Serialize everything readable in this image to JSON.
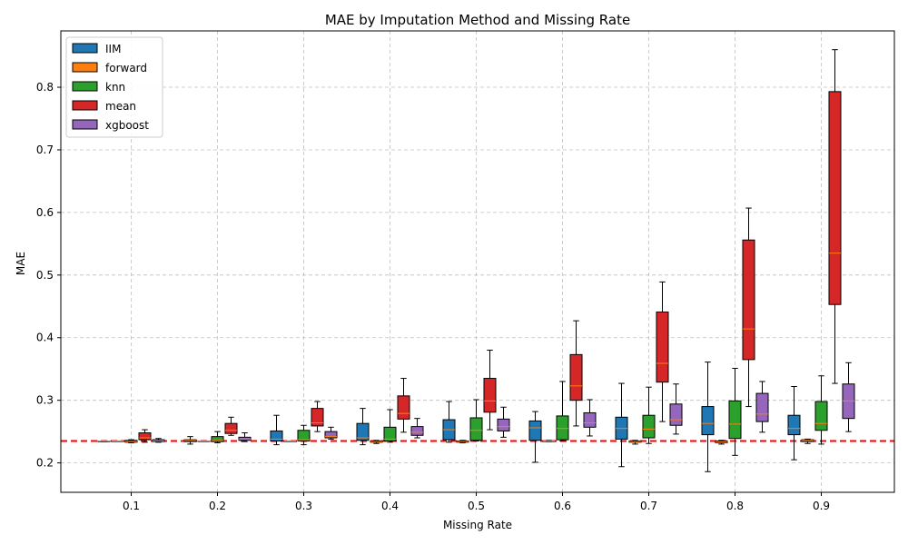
{
  "chart_data": {
    "type": "box",
    "title": "MAE by Imputation Method and Missing Rate",
    "xlabel": "Missing Rate",
    "ylabel": "MAE",
    "categories": [
      "0.1",
      "0.2",
      "0.3",
      "0.4",
      "0.5",
      "0.6",
      "0.7",
      "0.8",
      "0.9"
    ],
    "ylim": [
      0.153,
      0.89
    ],
    "yticks": [
      "0.2",
      "0.3",
      "0.4",
      "0.5",
      "0.6",
      "0.7",
      "0.8"
    ],
    "grid": true,
    "legend_position": "top-left",
    "reference_line": {
      "value": 0.235,
      "color": "#ff0000",
      "style": "dashed"
    },
    "median_color": "#ff7f0e",
    "series": [
      {
        "name": "IIM",
        "color": "#1f77b4",
        "boxes": [
          {
            "whislo": 0.234,
            "q1": 0.234,
            "med": 0.235,
            "q3": 0.235,
            "whishi": 0.235
          },
          {
            "whislo": 0.23,
            "q1": 0.234,
            "med": 0.236,
            "q3": 0.237,
            "whishi": 0.242
          },
          {
            "whislo": 0.229,
            "q1": 0.235,
            "med": 0.238,
            "q3": 0.251,
            "whishi": 0.276
          },
          {
            "whislo": 0.229,
            "q1": 0.236,
            "med": 0.24,
            "q3": 0.263,
            "whishi": 0.287
          },
          {
            "whislo": 0.233,
            "q1": 0.237,
            "med": 0.253,
            "q3": 0.269,
            "whishi": 0.298
          },
          {
            "whislo": 0.201,
            "q1": 0.236,
            "med": 0.256,
            "q3": 0.267,
            "whishi": 0.282
          },
          {
            "whislo": 0.194,
            "q1": 0.238,
            "med": 0.255,
            "q3": 0.273,
            "whishi": 0.327
          },
          {
            "whislo": 0.186,
            "q1": 0.245,
            "med": 0.263,
            "q3": 0.29,
            "whishi": 0.361
          },
          {
            "whislo": 0.205,
            "q1": 0.245,
            "med": 0.255,
            "q3": 0.276,
            "whishi": 0.322
          }
        ]
      },
      {
        "name": "forward",
        "color": "#ff7f0e",
        "boxes": [
          {
            "whislo": 0.235,
            "q1": 0.235,
            "med": 0.235,
            "q3": 0.235,
            "whishi": 0.235
          },
          {
            "whislo": 0.235,
            "q1": 0.235,
            "med": 0.235,
            "q3": 0.235,
            "whishi": 0.235
          },
          {
            "whislo": 0.235,
            "q1": 0.235,
            "med": 0.235,
            "q3": 0.235,
            "whishi": 0.235
          },
          {
            "whislo": 0.231,
            "q1": 0.233,
            "med": 0.234,
            "q3": 0.235,
            "whishi": 0.236
          },
          {
            "whislo": 0.232,
            "q1": 0.233,
            "med": 0.234,
            "q3": 0.235,
            "whishi": 0.236
          },
          {
            "whislo": 0.234,
            "q1": 0.235,
            "med": 0.235,
            "q3": 0.235,
            "whishi": 0.236
          },
          {
            "whislo": 0.23,
            "q1": 0.233,
            "med": 0.234,
            "q3": 0.235,
            "whishi": 0.236
          },
          {
            "whislo": 0.23,
            "q1": 0.232,
            "med": 0.233,
            "q3": 0.235,
            "whishi": 0.236
          },
          {
            "whislo": 0.231,
            "q1": 0.234,
            "med": 0.236,
            "q3": 0.237,
            "whishi": 0.238
          }
        ]
      },
      {
        "name": "knn",
        "color": "#2ca02c",
        "boxes": [
          {
            "whislo": 0.232,
            "q1": 0.233,
            "med": 0.234,
            "q3": 0.236,
            "whishi": 0.237
          },
          {
            "whislo": 0.232,
            "q1": 0.234,
            "med": 0.236,
            "q3": 0.242,
            "whishi": 0.25
          },
          {
            "whislo": 0.229,
            "q1": 0.235,
            "med": 0.237,
            "q3": 0.252,
            "whishi": 0.26
          },
          {
            "whislo": 0.233,
            "q1": 0.235,
            "med": 0.238,
            "q3": 0.257,
            "whishi": 0.285
          },
          {
            "whislo": 0.235,
            "q1": 0.236,
            "med": 0.252,
            "q3": 0.272,
            "whishi": 0.301
          },
          {
            "whislo": 0.235,
            "q1": 0.237,
            "med": 0.255,
            "q3": 0.275,
            "whishi": 0.33
          },
          {
            "whislo": 0.231,
            "q1": 0.24,
            "med": 0.254,
            "q3": 0.276,
            "whishi": 0.321
          },
          {
            "whislo": 0.212,
            "q1": 0.239,
            "med": 0.262,
            "q3": 0.299,
            "whishi": 0.351
          },
          {
            "whislo": 0.23,
            "q1": 0.252,
            "med": 0.263,
            "q3": 0.298,
            "whishi": 0.339
          }
        ]
      },
      {
        "name": "mean",
        "color": "#d62728",
        "boxes": [
          {
            "whislo": 0.233,
            "q1": 0.237,
            "med": 0.24,
            "q3": 0.248,
            "whishi": 0.253
          },
          {
            "whislo": 0.244,
            "q1": 0.247,
            "med": 0.252,
            "q3": 0.263,
            "whishi": 0.273
          },
          {
            "whislo": 0.25,
            "q1": 0.259,
            "med": 0.264,
            "q3": 0.287,
            "whishi": 0.298
          },
          {
            "whislo": 0.249,
            "q1": 0.27,
            "med": 0.279,
            "q3": 0.307,
            "whishi": 0.335
          },
          {
            "whislo": 0.253,
            "q1": 0.281,
            "med": 0.299,
            "q3": 0.335,
            "whishi": 0.38
          },
          {
            "whislo": 0.259,
            "q1": 0.3,
            "med": 0.323,
            "q3": 0.373,
            "whishi": 0.427
          },
          {
            "whislo": 0.266,
            "q1": 0.329,
            "med": 0.359,
            "q3": 0.441,
            "whishi": 0.489
          },
          {
            "whislo": 0.29,
            "q1": 0.365,
            "med": 0.414,
            "q3": 0.556,
            "whishi": 0.607
          },
          {
            "whislo": 0.327,
            "q1": 0.453,
            "med": 0.535,
            "q3": 0.793,
            "whishi": 0.86
          }
        ]
      },
      {
        "name": "xgboost",
        "color": "#9467bd",
        "boxes": [
          {
            "whislo": 0.233,
            "q1": 0.234,
            "med": 0.235,
            "q3": 0.237,
            "whishi": 0.239
          },
          {
            "whislo": 0.234,
            "q1": 0.236,
            "med": 0.238,
            "q3": 0.241,
            "whishi": 0.248
          },
          {
            "whislo": 0.238,
            "q1": 0.24,
            "med": 0.242,
            "q3": 0.25,
            "whishi": 0.257
          },
          {
            "whislo": 0.24,
            "q1": 0.244,
            "med": 0.249,
            "q3": 0.258,
            "whishi": 0.271
          },
          {
            "whislo": 0.241,
            "q1": 0.251,
            "med": 0.258,
            "q3": 0.27,
            "whishi": 0.289
          },
          {
            "whislo": 0.243,
            "q1": 0.257,
            "med": 0.264,
            "q3": 0.28,
            "whishi": 0.301
          },
          {
            "whislo": 0.246,
            "q1": 0.26,
            "med": 0.269,
            "q3": 0.294,
            "whishi": 0.326
          },
          {
            "whislo": 0.249,
            "q1": 0.266,
            "med": 0.278,
            "q3": 0.311,
            "whishi": 0.33
          },
          {
            "whislo": 0.25,
            "q1": 0.271,
            "med": 0.299,
            "q3": 0.326,
            "whishi": 0.36
          }
        ]
      }
    ]
  }
}
